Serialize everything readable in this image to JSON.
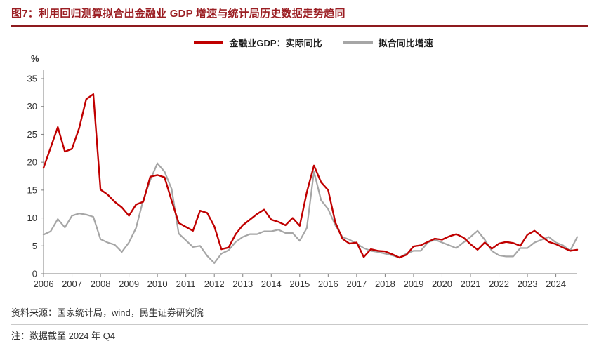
{
  "header": {
    "title": "图7：利用回归测算拟合出金融业 GDP 增速与统计局历史数据走势趋同",
    "accent_color": "#9b1e23"
  },
  "footer": {
    "source": "资料来源：国家统计局，wind，民生证券研究院",
    "note": "注：数据截至 2024 年 Q4"
  },
  "chart_data": {
    "type": "line",
    "unit_label": "%",
    "ylim": [
      0,
      35
    ],
    "yticks": [
      0,
      5,
      10,
      15,
      20,
      25,
      30,
      35
    ],
    "x_tick_years": [
      "2006",
      "2007",
      "2008",
      "2009",
      "2010",
      "2011",
      "2012",
      "2013",
      "2014",
      "2015",
      "2016",
      "2017",
      "2018",
      "2019",
      "2020",
      "2021",
      "2022",
      "2023",
      "2024"
    ],
    "quarters_per_year": 4,
    "grid": false,
    "legend_position": "top-center",
    "axis_color": "#808080",
    "series": [
      {
        "name": "金融业GDP：实际同比",
        "color": "#c00000",
        "width": 2.4,
        "values": [
          19.0,
          22.6,
          26.3,
          21.9,
          22.4,
          26.1,
          31.3,
          32.2,
          15.1,
          14.2,
          12.9,
          11.9,
          10.4,
          12.4,
          12.9,
          17.4,
          17.7,
          17.3,
          13.1,
          9.1,
          8.4,
          7.7,
          11.3,
          10.9,
          8.5,
          4.4,
          4.7,
          7.1,
          8.7,
          9.7,
          10.7,
          11.5,
          9.7,
          9.3,
          8.7,
          10.0,
          8.6,
          14.6,
          19.4,
          16.4,
          15.0,
          9.2,
          6.3,
          5.4,
          5.6,
          3.0,
          4.4,
          4.1,
          4.0,
          3.5,
          2.9,
          3.4,
          4.9,
          5.1,
          5.7,
          6.3,
          6.1,
          6.7,
          7.1,
          6.5,
          5.3,
          4.3,
          5.6,
          4.5,
          5.4,
          5.7,
          5.5,
          5.0,
          7.0,
          7.7,
          6.7,
          5.7,
          5.3,
          4.7,
          4.1,
          4.3
        ]
      },
      {
        "name": "拟合同比增速",
        "color": "#a6a6a6",
        "width": 2.2,
        "values": [
          7.0,
          7.6,
          9.8,
          8.3,
          10.4,
          10.8,
          10.6,
          10.2,
          6.2,
          5.6,
          5.2,
          3.9,
          5.6,
          8.2,
          13.2,
          16.8,
          19.8,
          18.3,
          15.2,
          7.2,
          6.0,
          4.8,
          5.0,
          3.2,
          1.9,
          3.6,
          4.2,
          5.7,
          6.6,
          7.1,
          7.1,
          7.6,
          7.6,
          7.9,
          7.3,
          7.3,
          5.9,
          8.2,
          18.3,
          13.2,
          11.6,
          8.7,
          6.6,
          6.1,
          5.4,
          4.6,
          4.1,
          3.9,
          3.6,
          3.3,
          2.9,
          3.6,
          4.1,
          4.1,
          5.6,
          6.1,
          5.6,
          5.1,
          4.6,
          5.6,
          6.6,
          7.7,
          6.1,
          4.1,
          3.3,
          3.1,
          3.1,
          4.6,
          4.6,
          5.6,
          6.1,
          6.6,
          5.6,
          5.1,
          4.1,
          6.6
        ]
      }
    ]
  }
}
